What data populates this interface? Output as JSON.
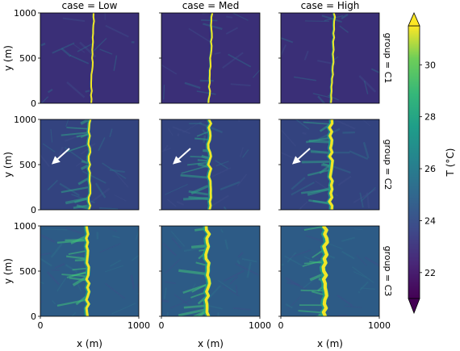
{
  "chart_data": {
    "type": "heatmap",
    "column_titles": [
      "case = Low",
      "case = Med",
      "case = High"
    ],
    "row_titles": [
      "group = C1",
      "group = C2",
      "group = C3"
    ],
    "xlabel": "x (m)",
    "ylabel": "y (m)",
    "x_ticks": [
      "0",
      "1000"
    ],
    "y_ticks": [
      "0",
      "500",
      "1000"
    ],
    "xlim": [
      0,
      1000
    ],
    "ylim": [
      0,
      1000
    ],
    "colorbar": {
      "label": "T (°C)",
      "ticks": [
        "22",
        "24",
        "26",
        "28",
        "30"
      ],
      "range": [
        21,
        31.5
      ],
      "colormap": "viridis",
      "extend": "both"
    },
    "front_x_m": [
      [
        530,
        500,
        530
      ],
      [
        500,
        490,
        510
      ],
      [
        480,
        470,
        450
      ]
    ],
    "front_width_m": [
      [
        20,
        25,
        30
      ],
      [
        40,
        50,
        60
      ],
      [
        55,
        65,
        75
      ]
    ],
    "wind_arrows_group": "group = C2",
    "colors": {
      "background_field": "#3b2f78",
      "front_peak": "#f2e526"
    }
  }
}
